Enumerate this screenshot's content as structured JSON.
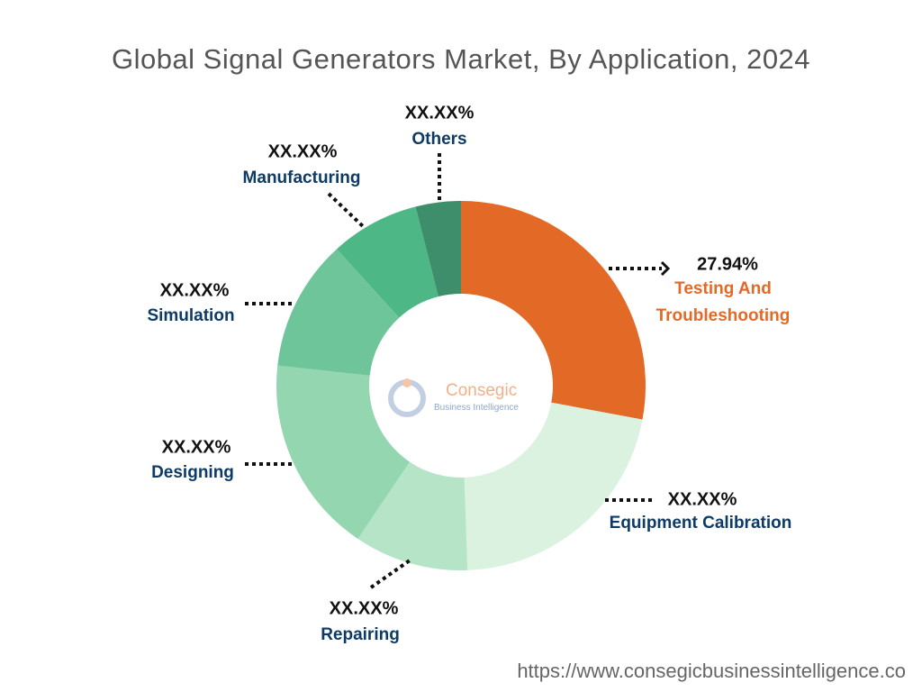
{
  "chart_data": {
    "type": "donut",
    "title": "Global Signal Generators Market, By Application, 2024",
    "categories": [
      "Testing And Troubleshooting",
      "Equipment Calibration",
      "Repairing",
      "Designing",
      "Simulation",
      "Manufacturing",
      "Others"
    ],
    "values": [
      27.94,
      21.5,
      10,
      17.3,
      11.5,
      7.8,
      3.96
    ],
    "value_labels": [
      "27.94%",
      "XX.XX%",
      "XX.XX%",
      "XX.XX%",
      "XX.XX%",
      "XX.XX%",
      "XX.XX%"
    ],
    "colors": [
      "#e36a26",
      "#daf2df",
      "#b5e5c6",
      "#93d6b0",
      "#6fc59a",
      "#4db886",
      "#3e8e6c"
    ]
  },
  "watermark": {
    "name": "Consegic",
    "tagline": "Business Intelligence"
  },
  "source": "https://www.consegicbusinessintelligence.co"
}
